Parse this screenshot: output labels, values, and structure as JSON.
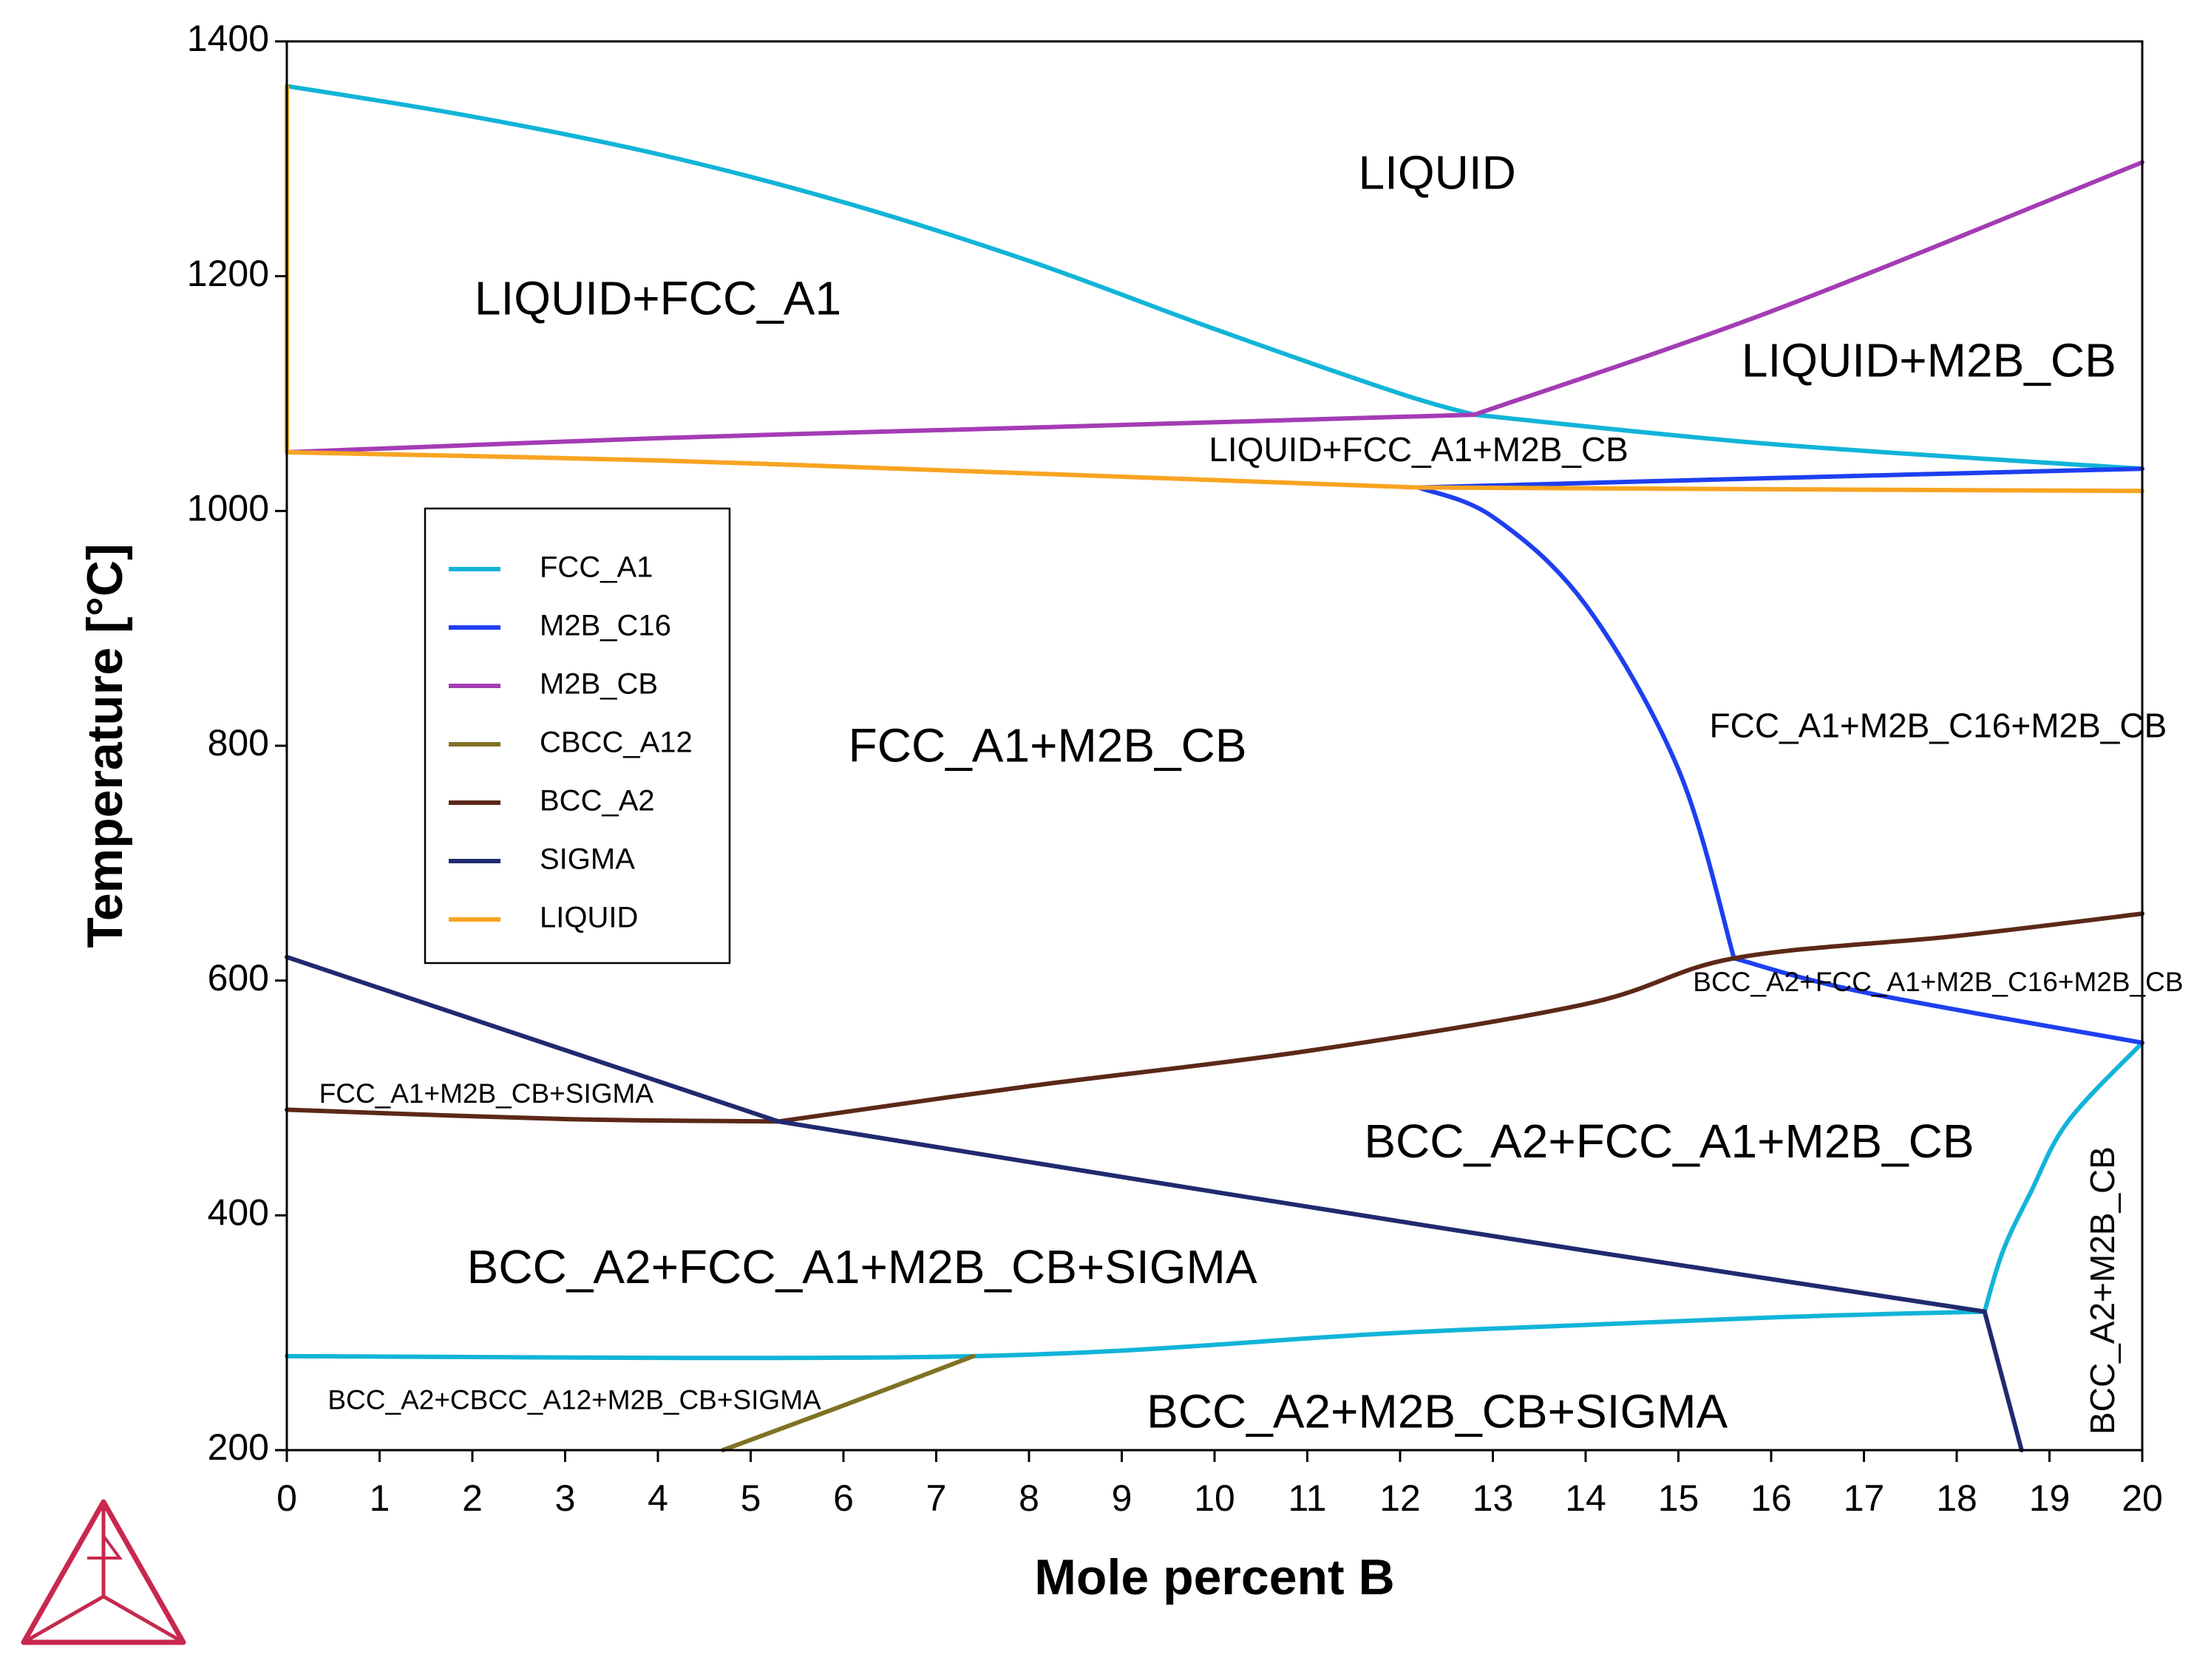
{
  "chart_data": {
    "type": "line",
    "title": "",
    "xlabel": "Mole percent B",
    "ylabel": "Temperature [°C]",
    "xlim": [
      0,
      20
    ],
    "ylim": [
      200,
      1400
    ],
    "xticks": [
      0,
      1,
      2,
      3,
      4,
      5,
      6,
      7,
      8,
      9,
      10,
      11,
      12,
      13,
      14,
      15,
      16,
      17,
      18,
      19,
      20
    ],
    "yticks": [
      200,
      400,
      600,
      800,
      1000,
      1200,
      1400
    ],
    "grid": false,
    "legend_position": "left",
    "series": [
      {
        "name": "FCC_A1",
        "color": "#12b4d8",
        "segments": [
          [
            [
              0,
              1362
            ],
            [
              2,
              1336
            ],
            [
              4,
              1304
            ],
            [
              6,
              1263
            ],
            [
              8,
              1213
            ],
            [
              10,
              1155
            ],
            [
              12,
              1100
            ],
            [
              12.8,
              1082
            ]
          ],
          [
            [
              12.8,
              1082
            ],
            [
              16,
              1057
            ],
            [
              20,
              1036
            ]
          ],
          [
            [
              0,
              280
            ],
            [
              7.4,
              280
            ],
            [
              12,
              300
            ],
            [
              16,
              313
            ],
            [
              18.3,
              318
            ]
          ],
          [
            [
              18.3,
              318
            ],
            [
              18.5,
              370
            ],
            [
              18.8,
              420
            ],
            [
              19.2,
              480
            ],
            [
              20,
              547
            ]
          ]
        ]
      },
      {
        "name": "M2B_C16",
        "color": "#1e3ff0",
        "segments": [
          [
            [
              12.2,
              1020
            ],
            [
              16,
              1028
            ],
            [
              20,
              1036
            ]
          ],
          [
            [
              12.2,
              1020
            ],
            [
              13,
              995
            ],
            [
              14,
              920
            ],
            [
              15,
              780
            ],
            [
              15.6,
              619
            ]
          ],
          [
            [
              15.6,
              619
            ],
            [
              17,
              590
            ],
            [
              20,
              547
            ]
          ]
        ]
      },
      {
        "name": "M2B_CB",
        "color": "#a43cb4",
        "segments": [
          [
            [
              0,
              1050
            ],
            [
              4,
              1062
            ],
            [
              8,
              1071
            ],
            [
              12.8,
              1082
            ]
          ],
          [
            [
              12.8,
              1082
            ],
            [
              16,
              1170
            ],
            [
              20,
              1297
            ]
          ]
        ]
      },
      {
        "name": "CBCC_A12",
        "color": "#7f7224",
        "segments": [
          [
            [
              4.7,
              200
            ],
            [
              6,
              238
            ],
            [
              7.4,
              280
            ]
          ]
        ]
      },
      {
        "name": "BCC_A2",
        "color": "#5c2818",
        "segments": [
          [
            [
              0,
              490
            ],
            [
              3,
              482
            ],
            [
              5.3,
              480
            ]
          ],
          [
            [
              5.3,
              480
            ],
            [
              8,
              510
            ],
            [
              11,
              540
            ],
            [
              14,
              580
            ],
            [
              15.6,
              619
            ],
            [
              18,
              638
            ],
            [
              20,
              657
            ]
          ]
        ]
      },
      {
        "name": "SIGMA",
        "color": "#202a70",
        "segments": [
          [
            [
              0,
              620
            ],
            [
              5.3,
              480
            ]
          ],
          [
            [
              5.3,
              480
            ],
            [
              10,
              420
            ],
            [
              14,
              370
            ],
            [
              18.3,
              318
            ]
          ],
          [
            [
              18.3,
              318
            ],
            [
              18.7,
              200
            ]
          ]
        ]
      },
      {
        "name": "LIQUID",
        "color": "#f8a422",
        "segments": [
          [
            [
              0,
              1050
            ],
            [
              4,
              1043
            ],
            [
              8,
              1032
            ],
            [
              12.2,
              1020
            ]
          ],
          [
            [
              12.2,
              1020
            ],
            [
              20,
              1017
            ]
          ],
          [
            [
              0,
              1050
            ],
            [
              0,
              1362
            ]
          ]
        ]
      }
    ],
    "annotations": [
      {
        "text": "LIQUID",
        "x": 12.4,
        "y": 1285,
        "size": "large"
      },
      {
        "text": "LIQUID+FCC_A1",
        "x": 4.0,
        "y": 1178,
        "size": "large"
      },
      {
        "text": "LIQUID+M2B_CB",
        "x": 17.7,
        "y": 1125,
        "size": "large"
      },
      {
        "text": "LIQUID+FCC_A1+M2B_CB",
        "x": 12.2,
        "y": 1050,
        "size": "medium"
      },
      {
        "text": "FCC_A1+M2B_CB",
        "x": 8.2,
        "y": 797,
        "size": "large"
      },
      {
        "text": "FCC_A1+M2B_C16+M2B_CB",
        "x": 17.8,
        "y": 815,
        "size": "medium"
      },
      {
        "text": "BCC_A2+FCC_A1+M2B_C16+M2B_CB",
        "x": 17.8,
        "y": 597,
        "size": "small"
      },
      {
        "text": "FCC_A1+M2B_CB+SIGMA",
        "x": 2.15,
        "y": 502,
        "size": "small"
      },
      {
        "text": "BCC_A2+FCC_A1+M2B_CB",
        "x": 14.9,
        "y": 460,
        "size": "large"
      },
      {
        "text": "BCC_A2+FCC_A1+M2B_CB+SIGMA",
        "x": 6.2,
        "y": 353,
        "size": "large"
      },
      {
        "text": "BCC_A2+CBCC_A12+M2B_CB+SIGMA",
        "x": 3.1,
        "y": 241,
        "size": "small"
      },
      {
        "text": "BCC_A2+M2B_CB+SIGMA",
        "x": 12.4,
        "y": 230,
        "size": "large"
      },
      {
        "text": "BCC_A2+M2B_CB",
        "x": 19.6,
        "y": 336,
        "size": "medium",
        "rotate": -90
      }
    ]
  },
  "logo": {
    "name": "triangle-logo",
    "color": "#c8284e"
  }
}
